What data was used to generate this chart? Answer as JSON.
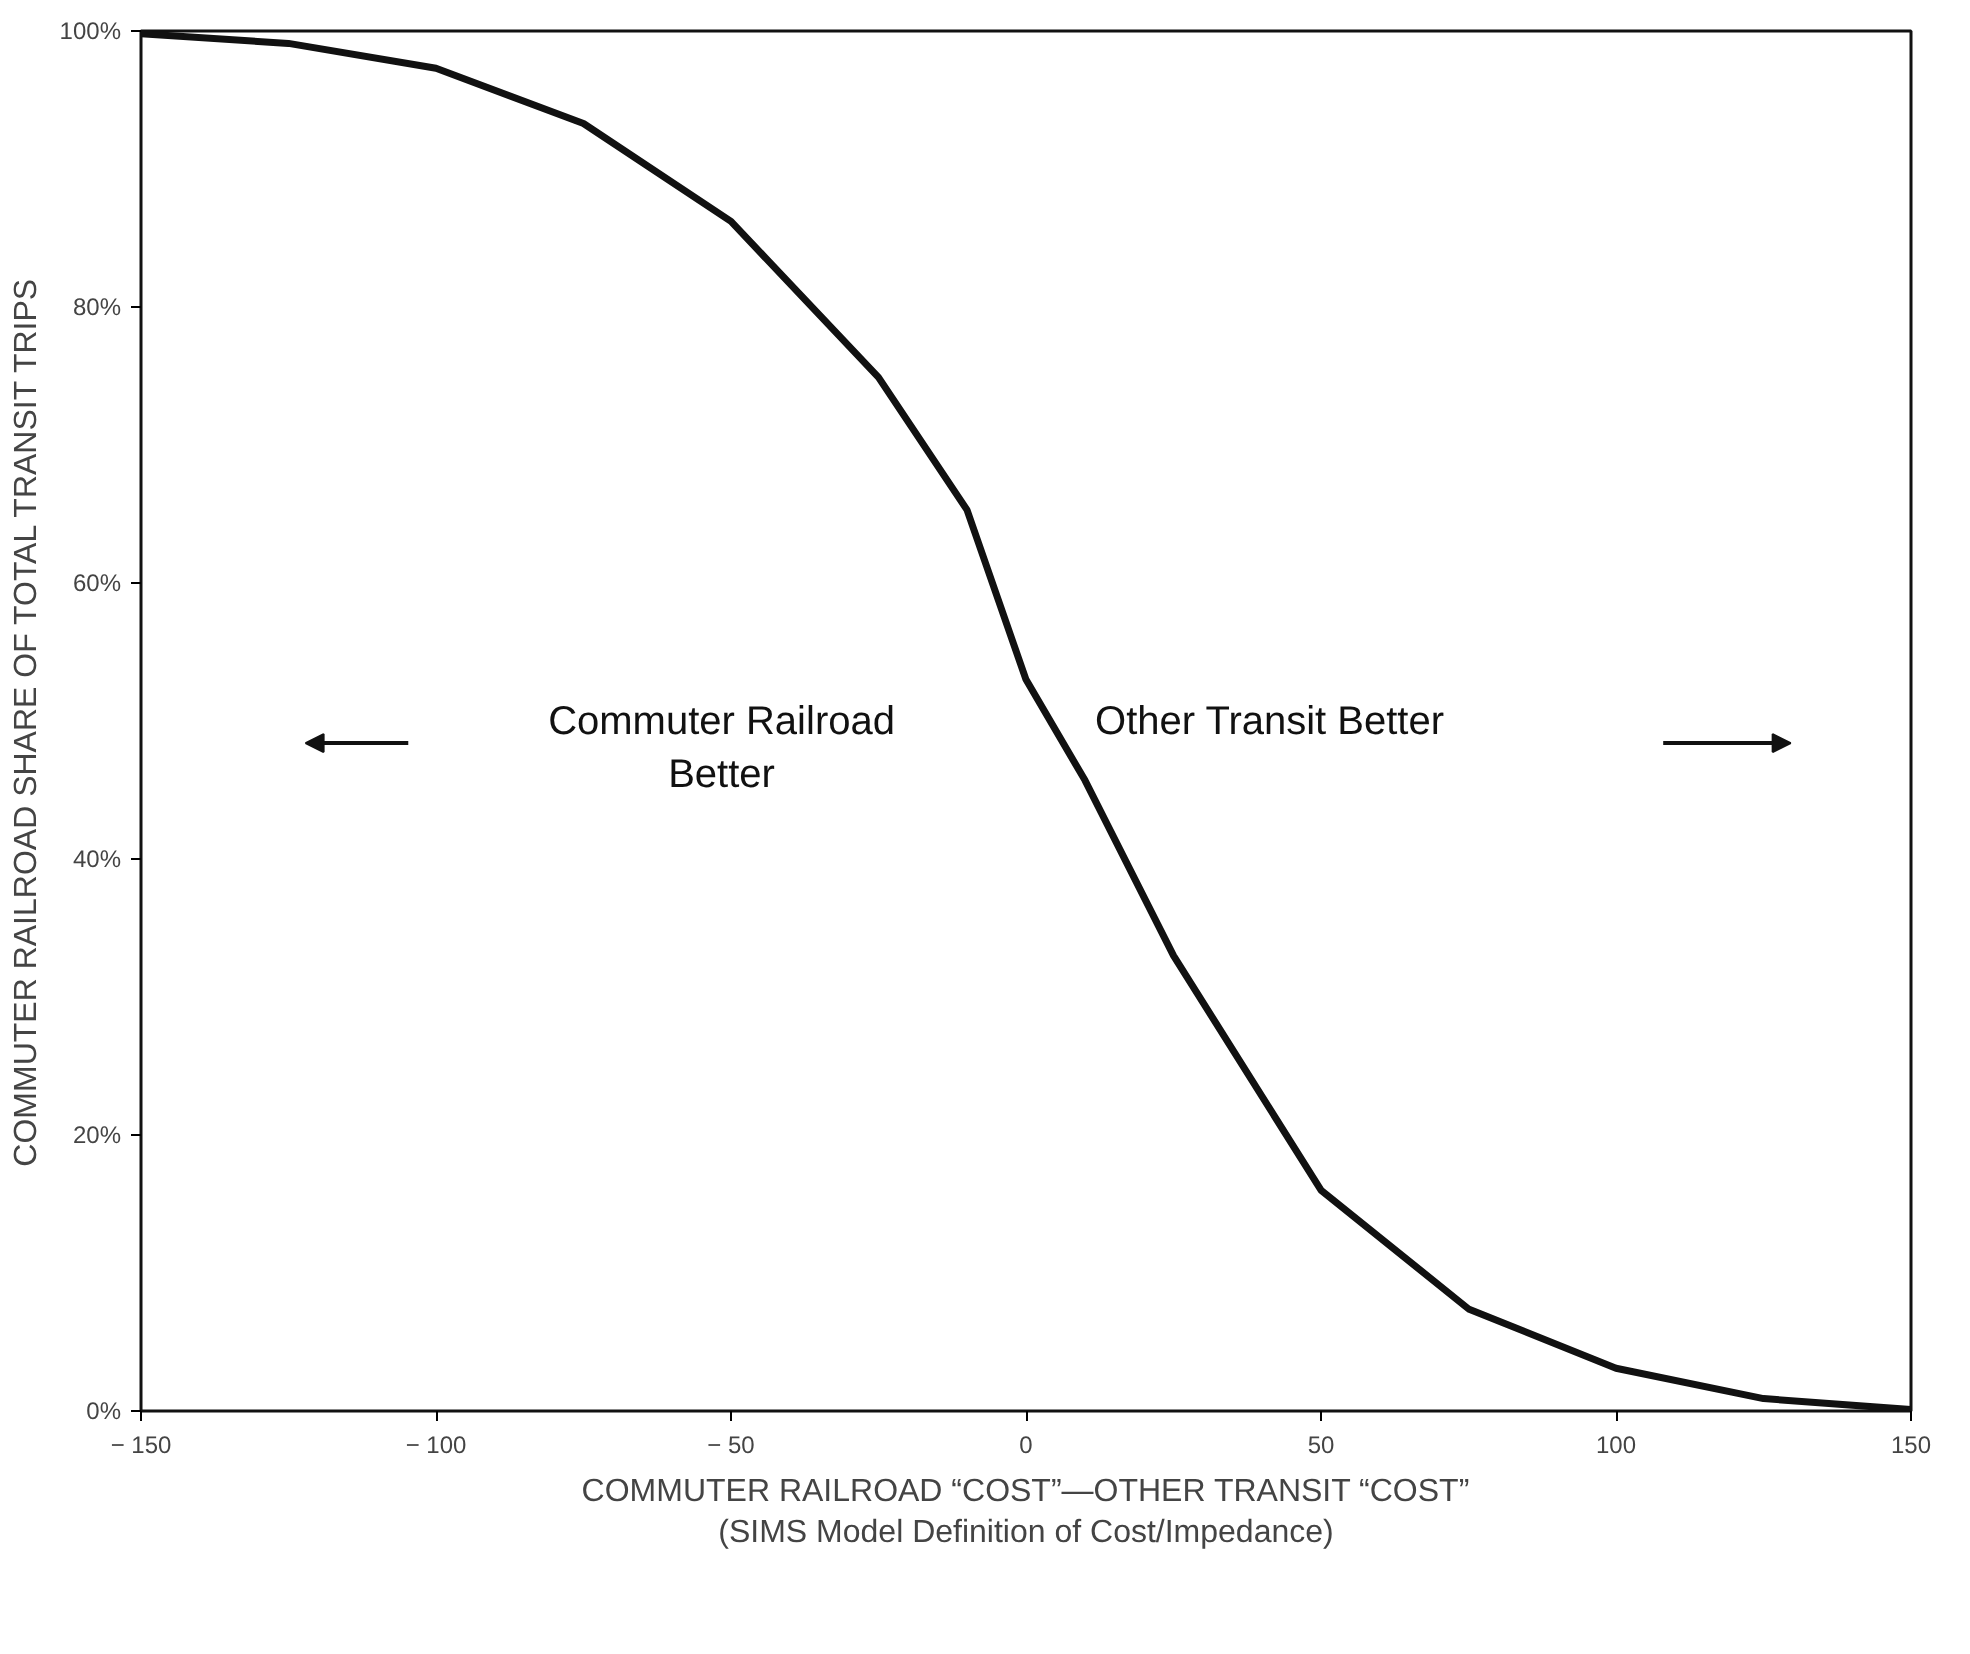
{
  "chart_data": {
    "type": "line",
    "xlabel": "COMMUTER RAILROAD “COST”—OTHER TRANSIT “COST”\n(SIMS Model Definition of Cost/Impedance)",
    "ylabel": "COMMUTER RAILROAD SHARE OF TOTAL TRANSIT TRIPS",
    "x": [
      -150,
      -125,
      -100,
      -75,
      -50,
      -25,
      -10,
      0,
      10,
      25,
      50,
      75,
      100,
      125,
      150
    ],
    "series": [
      {
        "color": "#111111",
        "values": [
          99.8,
          99.1,
          97.3,
          93.3,
          86.2,
          74.9,
          65.3,
          53,
          45.7,
          33,
          16,
          7.4,
          3.1,
          0.9,
          0.1
        ]
      }
    ],
    "xlim": [
      -150,
      150
    ],
    "ylim": [
      0,
      100
    ],
    "xticks": [
      {
        "value": -150,
        "label": "− 150"
      },
      {
        "value": -100,
        "label": "− 100"
      },
      {
        "value": -50,
        "label": "− 50"
      },
      0,
      50,
      100,
      150
    ],
    "yticks": [
      {
        "value": 0,
        "label": "0%"
      },
      {
        "value": 20,
        "label": "20%"
      },
      {
        "value": 40,
        "label": "40%"
      },
      {
        "value": 60,
        "label": "60%"
      },
      {
        "value": 80,
        "label": "80%"
      },
      {
        "value": 100,
        "label": "100%"
      }
    ],
    "annotations": [
      "Commuter Railroad\nBetter",
      "Other Transit Better"
    ],
    "grid": false,
    "marker": "none",
    "line_style": "solid"
  }
}
